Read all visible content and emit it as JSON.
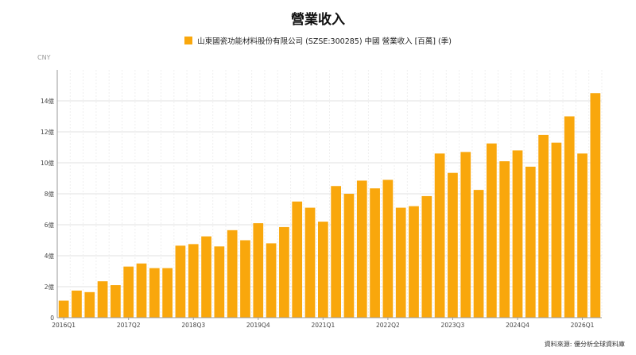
{
  "title": "營業收入",
  "legend_label": "山東國瓷功能材料股份有限公司 (SZSE:300285) 中國 營業收入 [百萬] (季)",
  "unit_label": "CNY",
  "source": "資料來源: 優分析全球資料庫",
  "colors": {
    "bar": "#F9A70C",
    "grid": "#e2e2e2",
    "axis": "#9a9a9a"
  },
  "chart_data": {
    "type": "bar",
    "title": "營業收入",
    "series": [
      {
        "name": "山東國瓷功能材料股份有限公司 (SZSE:300285) 中國 營業收入 [百萬] (季)",
        "values": [
          1.1,
          1.75,
          1.65,
          2.35,
          2.1,
          3.3,
          3.5,
          3.2,
          3.2,
          4.65,
          4.75,
          5.25,
          4.6,
          5.65,
          5.0,
          6.1,
          4.8,
          5.85,
          7.5,
          7.1,
          6.2,
          8.5,
          8.0,
          8.85,
          8.35,
          8.9,
          7.1,
          7.2,
          7.85,
          10.6,
          9.35,
          10.7,
          8.25,
          11.25,
          10.1,
          10.8,
          9.75,
          11.8,
          11.3,
          13.0,
          10.6,
          14.5
        ]
      }
    ],
    "x_tick_labels": [
      "2016Q1",
      "2017Q2",
      "2018Q3",
      "2019Q4",
      "2021Q1",
      "2022Q2",
      "2023Q3",
      "2024Q4",
      "2026Q1"
    ],
    "x_tick_index": [
      0,
      5,
      10,
      15,
      20,
      25,
      30,
      35,
      40
    ],
    "y_ticks": [
      {
        "value": 0,
        "label": "0"
      },
      {
        "value": 2,
        "label": "2億"
      },
      {
        "value": 4,
        "label": "4億"
      },
      {
        "value": 6,
        "label": "6億"
      },
      {
        "value": 8,
        "label": "8億"
      },
      {
        "value": 10,
        "label": "10億"
      },
      {
        "value": 12,
        "label": "12億"
      },
      {
        "value": 14,
        "label": "14億"
      }
    ],
    "ylim": [
      0,
      16
    ],
    "grid": true,
    "legend_position": "top-center"
  }
}
